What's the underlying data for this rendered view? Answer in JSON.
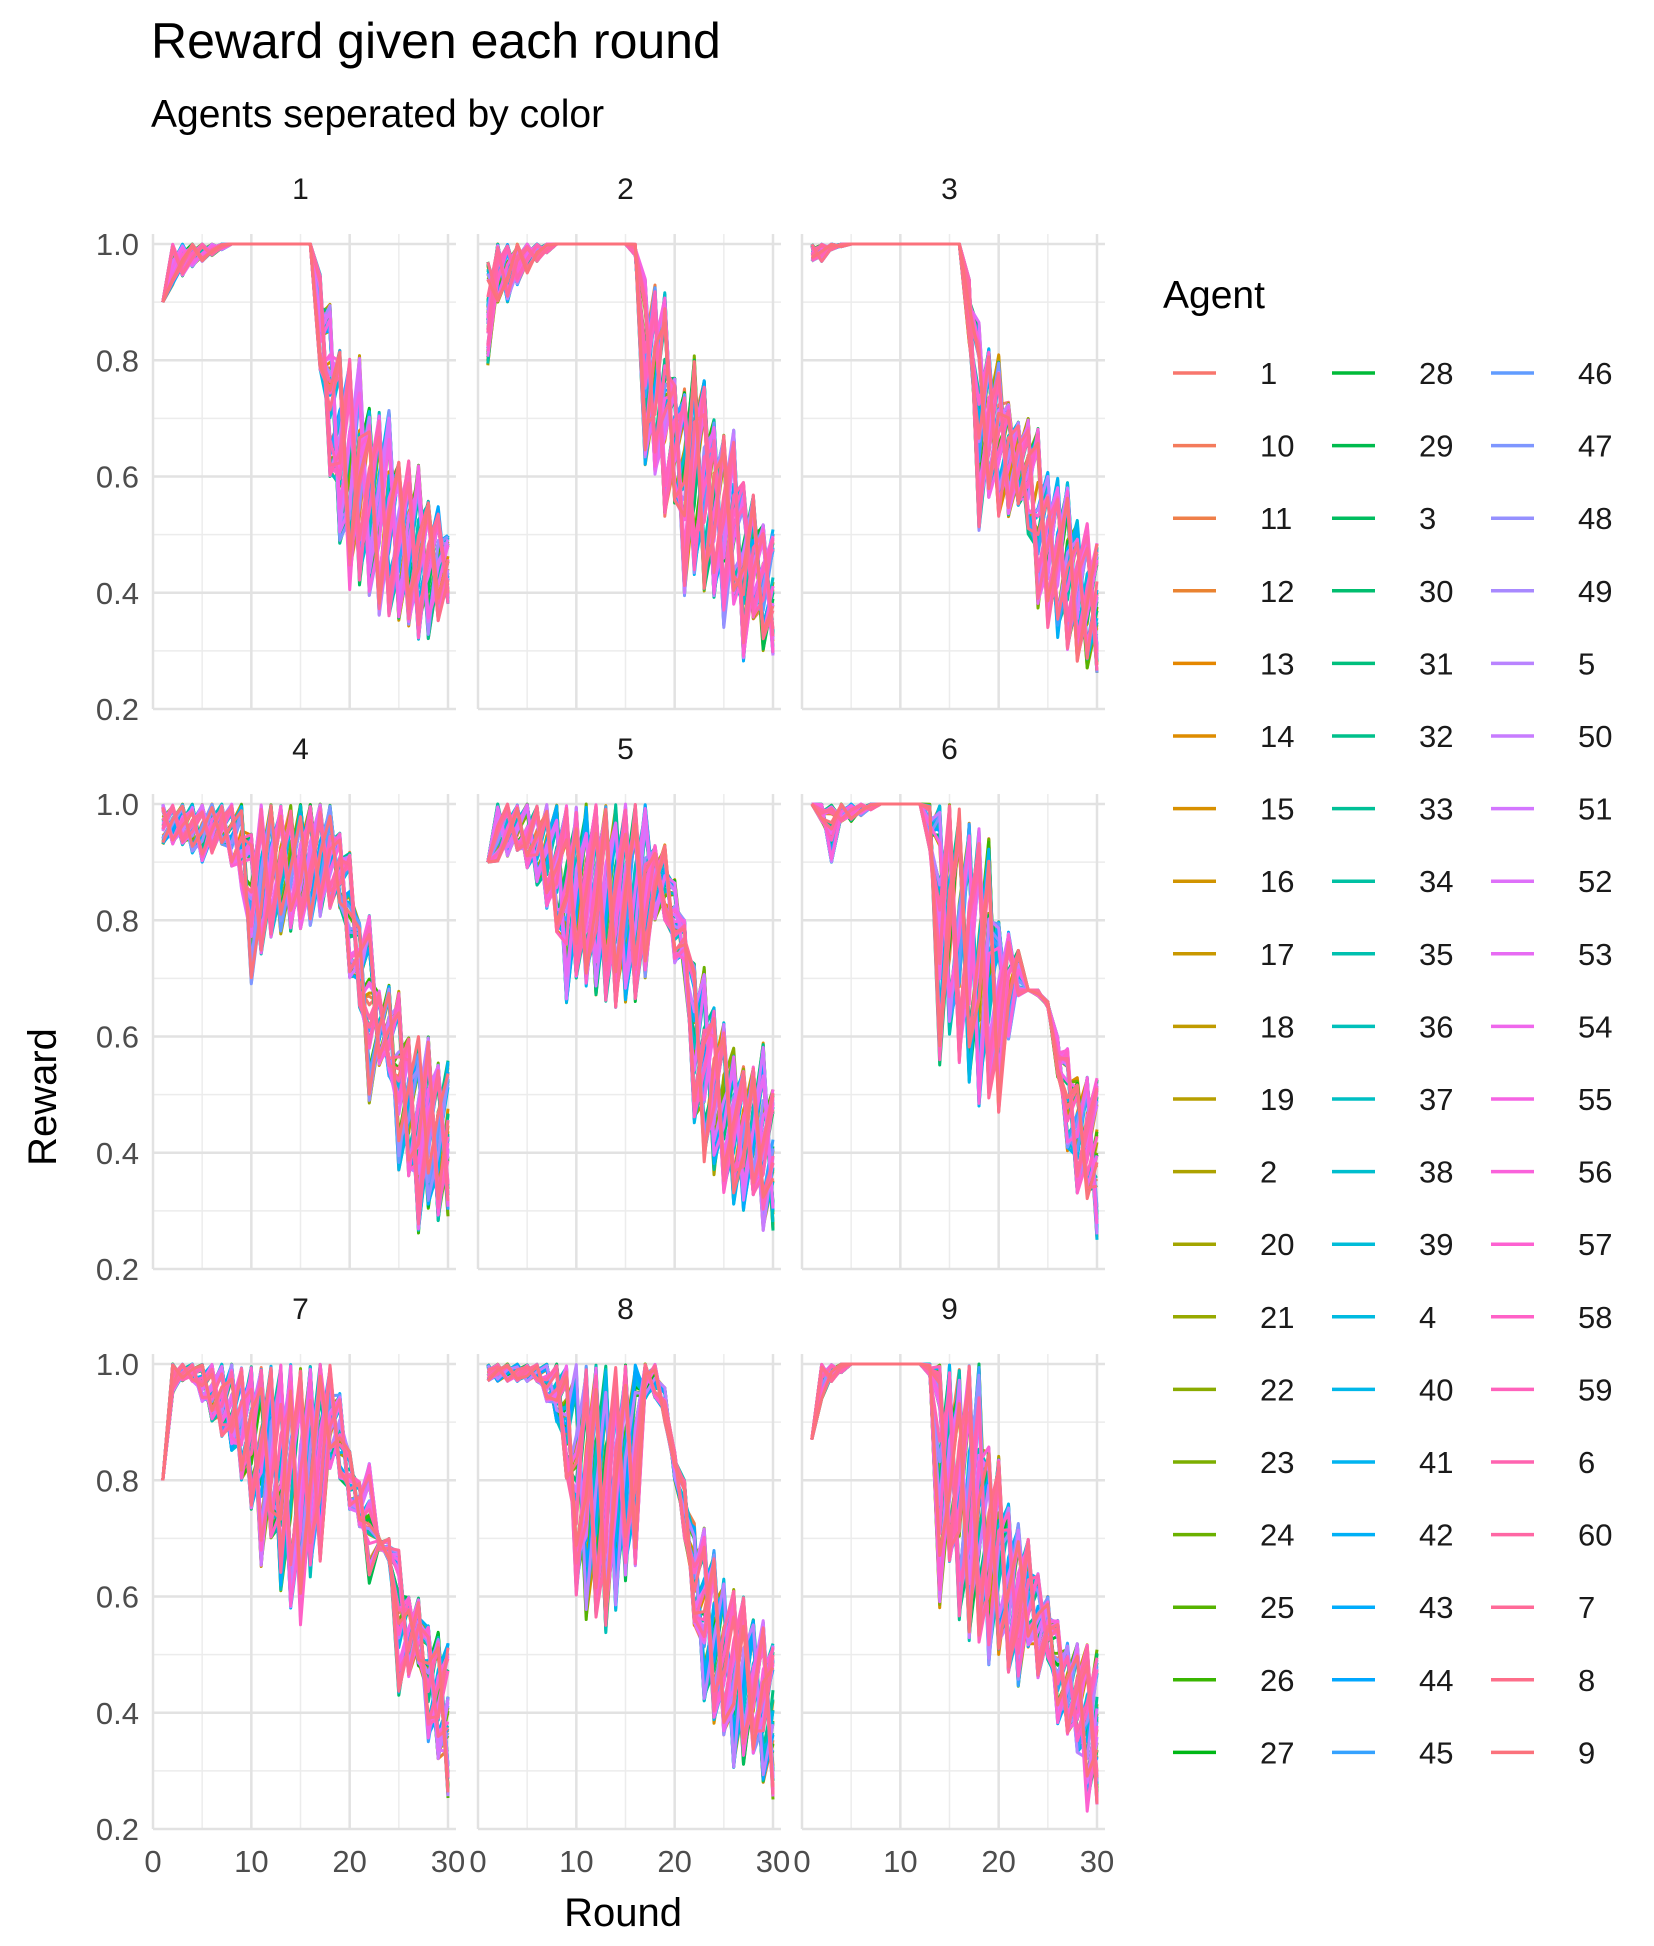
{
  "chart_data": {
    "type": "line",
    "title": "Reward given each round",
    "subtitle": "Agents seperated by color",
    "xlabel": "Round",
    "ylabel": "Reward",
    "xlim": [
      0,
      30
    ],
    "ylim": [
      0.2,
      1.0
    ],
    "x_ticks": [
      "0",
      "10",
      "20",
      "30"
    ],
    "y_ticks": [
      "0.2",
      "0.4",
      "0.6",
      "0.8",
      "1.0"
    ],
    "grid": true,
    "legend": {
      "title": "Agent",
      "placement": "right",
      "entries": [
        "1",
        "10",
        "11",
        "12",
        "13",
        "14",
        "15",
        "16",
        "17",
        "18",
        "19",
        "2",
        "20",
        "21",
        "22",
        "23",
        "24",
        "25",
        "26",
        "27",
        "28",
        "29",
        "3",
        "30",
        "31",
        "32",
        "33",
        "34",
        "35",
        "36",
        "37",
        "38",
        "39",
        "4",
        "40",
        "41",
        "42",
        "43",
        "44",
        "45",
        "46",
        "47",
        "48",
        "49",
        "5",
        "50",
        "51",
        "52",
        "53",
        "54",
        "55",
        "56",
        "57",
        "58",
        "59",
        "6",
        "60",
        "7",
        "8",
        "9"
      ]
    },
    "panels": [
      {
        "label": "1",
        "series_summary": [
          {
            "name": "upper envelope",
            "x": [
              1,
              2,
              4,
              8,
              16,
              18,
              19,
              20,
              21,
              22,
              23,
              24,
              25,
              26,
              27,
              28,
              29,
              30
            ],
            "values": [
              0.9,
              1.0,
              1.0,
              1.0,
              1.0,
              0.9,
              0.82,
              0.81,
              0.81,
              0.72,
              0.72,
              0.72,
              0.63,
              0.63,
              0.62,
              0.56,
              0.55,
              0.5
            ]
          },
          {
            "name": "lower envelope",
            "x": [
              1,
              2,
              4,
              8,
              16,
              17,
              18,
              19,
              20,
              21,
              22,
              23,
              24,
              25,
              26,
              27,
              28,
              29,
              30
            ],
            "values": [
              0.9,
              0.93,
              0.96,
              1.0,
              1.0,
              0.78,
              0.6,
              0.48,
              0.4,
              0.41,
              0.39,
              0.36,
              0.36,
              0.35,
              0.34,
              0.32,
              0.32,
              0.35,
              0.38
            ]
          }
        ]
      },
      {
        "label": "2",
        "series_summary": [
          {
            "name": "upper envelope",
            "x": [
              1,
              2,
              3,
              4,
              6,
              8,
              15,
              16,
              17,
              18,
              19,
              20,
              21,
              22,
              23,
              24,
              25,
              26,
              27,
              28,
              29,
              30
            ],
            "values": [
              0.97,
              1.0,
              1.0,
              1.0,
              1.0,
              1.0,
              1.0,
              1.0,
              0.94,
              0.93,
              0.92,
              0.77,
              0.76,
              0.81,
              0.77,
              0.7,
              0.68,
              0.68,
              0.59,
              0.57,
              0.52,
              0.51
            ]
          },
          {
            "name": "lower envelope",
            "x": [
              1,
              2,
              3,
              4,
              6,
              8,
              15,
              16,
              17,
              18,
              19,
              20,
              21,
              22,
              23,
              24,
              25,
              26,
              27,
              28,
              29,
              30
            ],
            "values": [
              0.79,
              0.9,
              0.9,
              0.93,
              0.97,
              1.0,
              1.0,
              0.98,
              0.62,
              0.6,
              0.53,
              0.55,
              0.39,
              0.43,
              0.4,
              0.39,
              0.34,
              0.38,
              0.28,
              0.35,
              0.3,
              0.29
            ]
          }
        ]
      },
      {
        "label": "3",
        "series_summary": [
          {
            "name": "upper envelope",
            "x": [
              1,
              2,
              3,
              5,
              10,
              16,
              17,
              18,
              19,
              20,
              21,
              22,
              23,
              24,
              25,
              26,
              27,
              28,
              29,
              30
            ],
            "values": [
              1.0,
              1.0,
              1.0,
              1.0,
              1.0,
              1.0,
              0.94,
              0.87,
              0.82,
              0.81,
              0.73,
              0.7,
              0.7,
              0.69,
              0.61,
              0.6,
              0.59,
              0.53,
              0.52,
              0.49
            ]
          },
          {
            "name": "lower envelope",
            "x": [
              1,
              2,
              3,
              5,
              10,
              16,
              17,
              18,
              19,
              20,
              21,
              22,
              23,
              24,
              25,
              26,
              27,
              28,
              29,
              30
            ],
            "values": [
              0.97,
              0.97,
              0.99,
              1.0,
              1.0,
              1.0,
              0.83,
              0.5,
              0.56,
              0.53,
              0.53,
              0.55,
              0.5,
              0.37,
              0.34,
              0.32,
              0.3,
              0.28,
              0.27,
              0.26
            ]
          }
        ]
      },
      {
        "label": "4",
        "series_summary": [
          {
            "name": "upper envelope",
            "x": [
              1,
              3,
              5,
              7,
              9,
              10,
              11,
              12,
              14,
              16,
              18,
              19,
              20,
              21,
              22,
              23,
              24,
              25,
              26,
              27,
              28,
              29,
              30
            ],
            "values": [
              1.0,
              1.0,
              1.0,
              1.0,
              1.0,
              0.95,
              1.0,
              1.0,
              1.0,
              1.0,
              1.0,
              0.95,
              0.92,
              0.8,
              0.81,
              0.68,
              0.69,
              0.68,
              0.6,
              0.6,
              0.6,
              0.56,
              0.56
            ]
          },
          {
            "name": "lower envelope",
            "x": [
              1,
              3,
              5,
              7,
              9,
              10,
              11,
              12,
              14,
              16,
              18,
              19,
              20,
              21,
              22,
              23,
              24,
              25,
              26,
              27,
              28,
              29,
              30
            ],
            "values": [
              0.93,
              0.93,
              0.9,
              0.93,
              0.85,
              0.69,
              0.74,
              0.77,
              0.78,
              0.79,
              0.82,
              0.82,
              0.7,
              0.65,
              0.47,
              0.55,
              0.53,
              0.37,
              0.36,
              0.26,
              0.3,
              0.28,
              0.29
            ]
          }
        ]
      },
      {
        "label": "5",
        "series_summary": [
          {
            "name": "upper envelope",
            "x": [
              1,
              2,
              4,
              6,
              8,
              10,
              12,
              14,
              16,
              17,
              18,
              19,
              20,
              21,
              22,
              23,
              24,
              25,
              26,
              27,
              28,
              29,
              30
            ],
            "values": [
              0.9,
              1.0,
              1.0,
              1.0,
              1.0,
              1.0,
              1.0,
              1.0,
              1.0,
              1.0,
              0.93,
              0.93,
              0.87,
              0.8,
              0.73,
              0.72,
              0.65,
              0.63,
              0.58,
              0.55,
              0.55,
              0.59,
              0.51
            ]
          },
          {
            "name": "lower envelope",
            "x": [
              1,
              2,
              4,
              6,
              8,
              9,
              10,
              12,
              14,
              16,
              17,
              18,
              19,
              20,
              21,
              22,
              23,
              24,
              25,
              26,
              27,
              28,
              29,
              30
            ],
            "values": [
              0.9,
              0.9,
              0.92,
              0.86,
              0.78,
              0.65,
              0.7,
              0.67,
              0.65,
              0.66,
              0.7,
              0.8,
              0.8,
              0.72,
              0.7,
              0.45,
              0.38,
              0.36,
              0.33,
              0.31,
              0.3,
              0.32,
              0.26,
              0.26
            ]
          }
        ]
      },
      {
        "label": "6",
        "series_summary": [
          {
            "name": "upper envelope",
            "x": [
              1,
              2,
              3,
              4,
              5,
              8,
              12,
              13,
              14,
              15,
              16,
              17,
              18,
              19,
              20,
              21,
              22,
              23,
              24,
              25,
              26,
              27,
              28,
              29,
              30
            ],
            "values": [
              1.0,
              1.0,
              1.0,
              1.0,
              1.0,
              1.0,
              1.0,
              1.0,
              1.0,
              1.0,
              1.0,
              0.97,
              0.96,
              0.95,
              0.8,
              0.78,
              0.75,
              0.68,
              0.68,
              0.66,
              0.6,
              0.58,
              0.53,
              0.53,
              0.53
            ]
          },
          {
            "name": "lower envelope",
            "x": [
              1,
              2,
              3,
              4,
              5,
              8,
              12,
              13,
              14,
              15,
              16,
              17,
              18,
              19,
              20,
              21,
              22,
              23,
              24,
              25,
              26,
              27,
              28,
              29,
              30
            ],
            "values": [
              1.0,
              0.97,
              0.9,
              0.97,
              0.97,
              1.0,
              1.0,
              0.92,
              0.55,
              0.6,
              0.55,
              0.52,
              0.48,
              0.49,
              0.46,
              0.59,
              0.67,
              0.68,
              0.67,
              0.65,
              0.53,
              0.4,
              0.33,
              0.32,
              0.25
            ]
          }
        ]
      },
      {
        "label": "7",
        "series_summary": [
          {
            "name": "upper envelope",
            "x": [
              1,
              2,
              4,
              6,
              8,
              10,
              12,
              14,
              16,
              18,
              19,
              20,
              21,
              22,
              23,
              24,
              25,
              26,
              27,
              28,
              29,
              30
            ],
            "values": [
              0.8,
              1.0,
              1.0,
              1.0,
              1.0,
              1.0,
              1.0,
              1.0,
              1.0,
              1.0,
              0.95,
              0.85,
              0.8,
              0.83,
              0.7,
              0.7,
              0.68,
              0.6,
              0.6,
              0.55,
              0.54,
              0.52
            ]
          },
          {
            "name": "lower envelope",
            "x": [
              1,
              2,
              3,
              4,
              6,
              8,
              10,
              11,
              12,
              13,
              14,
              15,
              16,
              17,
              18,
              19,
              20,
              21,
              22,
              23,
              24,
              25,
              26,
              27,
              28,
              29,
              30
            ],
            "values": [
              0.8,
              0.95,
              0.97,
              0.97,
              0.9,
              0.85,
              0.75,
              0.65,
              0.7,
              0.6,
              0.58,
              0.55,
              0.62,
              0.66,
              0.82,
              0.8,
              0.75,
              0.72,
              0.62,
              0.68,
              0.66,
              0.43,
              0.46,
              0.48,
              0.35,
              0.32,
              0.25
            ]
          }
        ]
      },
      {
        "label": "8",
        "series_summary": [
          {
            "name": "upper envelope",
            "x": [
              1,
              2,
              4,
              6,
              8,
              10,
              12,
              14,
              16,
              18,
              19,
              20,
              21,
              22,
              23,
              24,
              25,
              26,
              27,
              28,
              29,
              30
            ],
            "values": [
              1.0,
              1.0,
              1.0,
              1.0,
              1.0,
              1.0,
              1.0,
              1.0,
              1.0,
              1.0,
              0.96,
              0.85,
              0.8,
              0.73,
              0.72,
              0.68,
              0.63,
              0.62,
              0.6,
              0.56,
              0.56,
              0.52
            ]
          },
          {
            "name": "lower envelope",
            "x": [
              1,
              2,
              4,
              6,
              8,
              9,
              10,
              11,
              12,
              13,
              14,
              15,
              16,
              17,
              18,
              19,
              20,
              21,
              22,
              23,
              24,
              25,
              26,
              27,
              28,
              29,
              30
            ],
            "values": [
              0.97,
              0.97,
              0.97,
              0.97,
              0.9,
              0.8,
              0.6,
              0.56,
              0.56,
              0.53,
              0.56,
              0.62,
              0.65,
              0.94,
              0.94,
              0.9,
              0.8,
              0.7,
              0.55,
              0.42,
              0.38,
              0.36,
              0.3,
              0.31,
              0.33,
              0.28,
              0.25
            ]
          }
        ]
      },
      {
        "label": "9",
        "series_summary": [
          {
            "name": "upper envelope",
            "x": [
              1,
              2,
              3,
              5,
              8,
              12,
              13,
              14,
              15,
              16,
              17,
              18,
              19,
              20,
              21,
              22,
              23,
              24,
              25,
              26,
              27,
              28,
              29,
              30
            ],
            "values": [
              0.87,
              1.0,
              1.0,
              1.0,
              1.0,
              1.0,
              1.0,
              1.0,
              1.0,
              1.0,
              1.0,
              1.0,
              0.86,
              0.85,
              0.76,
              0.73,
              0.7,
              0.64,
              0.6,
              0.56,
              0.52,
              0.52,
              0.52,
              0.51
            ]
          },
          {
            "name": "lower envelope",
            "x": [
              1,
              2,
              3,
              5,
              8,
              12,
              13,
              14,
              15,
              16,
              17,
              18,
              19,
              20,
              21,
              22,
              23,
              24,
              25,
              26,
              27,
              28,
              29,
              30
            ],
            "values": [
              0.87,
              0.94,
              0.97,
              1.0,
              1.0,
              1.0,
              0.98,
              0.58,
              0.66,
              0.56,
              0.52,
              0.52,
              0.48,
              0.5,
              0.46,
              0.44,
              0.51,
              0.46,
              0.49,
              0.38,
              0.36,
              0.33,
              0.23,
              0.24
            ]
          }
        ]
      }
    ]
  }
}
